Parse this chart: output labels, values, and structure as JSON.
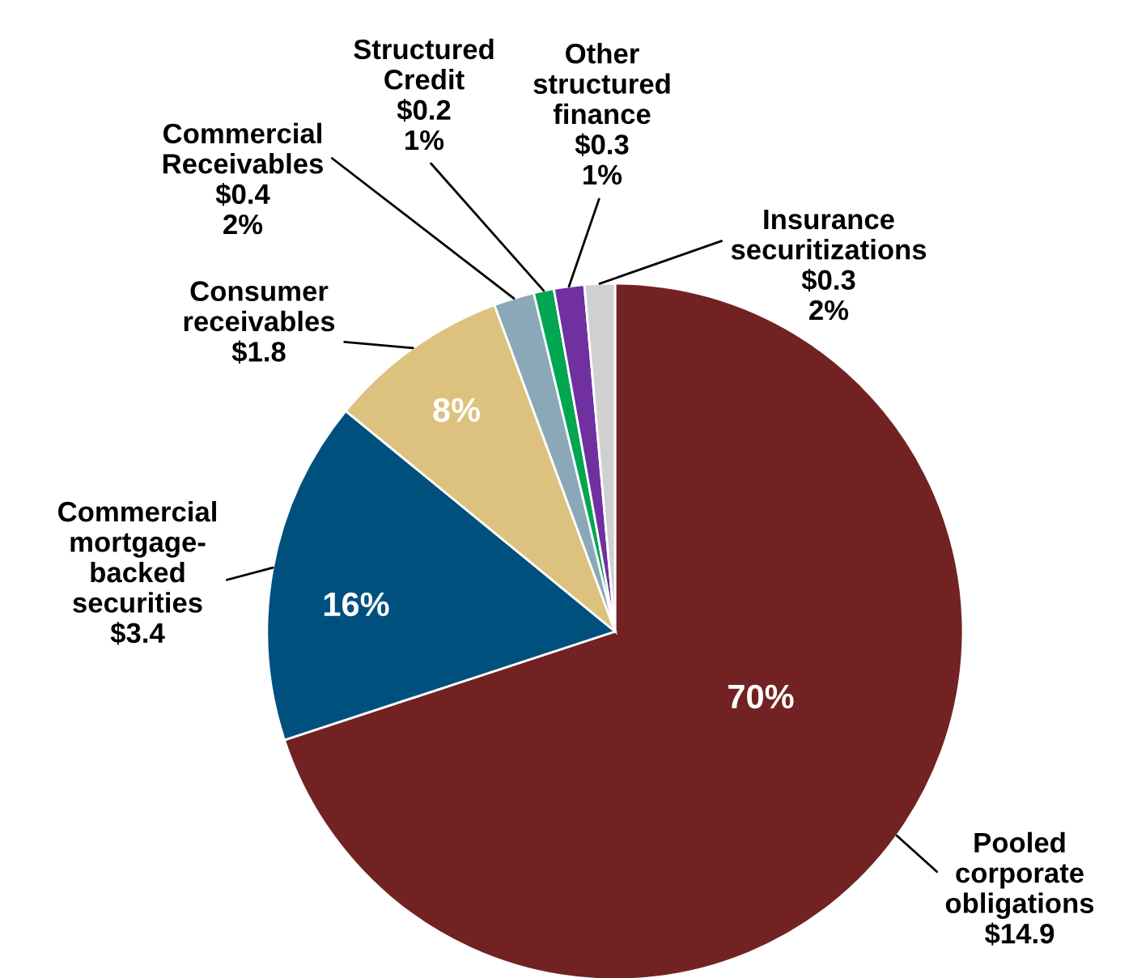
{
  "chart_data": {
    "type": "pie",
    "categories": [
      "Pooled\ncorporate\nobligations",
      "Commercial\nmortgage-\nbacked\nsecurities",
      "Consumer\nreceivables",
      "Commercial\nReceivables",
      "Structured\nCredit",
      "Other\nstructured\nfinance",
      "Insurance\nsecuritizations"
    ],
    "values": [
      14.9,
      3.4,
      1.8,
      0.4,
      0.2,
      0.3,
      0.3
    ],
    "value_labels": [
      "$14.9",
      "$3.4",
      "$1.8",
      "$0.4\n2%",
      "$0.2\n1%",
      "$0.3\n1%",
      "$0.3\n2%"
    ],
    "colors": [
      "#722223",
      "#00507e",
      "#dcc27e",
      "#8aa8b8",
      "#00a650",
      "#7030a0",
      "#d0d0d0"
    ],
    "annotations": [
      {
        "text": "70%",
        "x": "Pooled\ncorporate\nobligations"
      },
      {
        "text": "16%",
        "x": "Commercial\nmortgage-\nbacked\nsecurities"
      },
      {
        "text": "8%",
        "x": "Consumer\nreceivables"
      }
    ]
  }
}
